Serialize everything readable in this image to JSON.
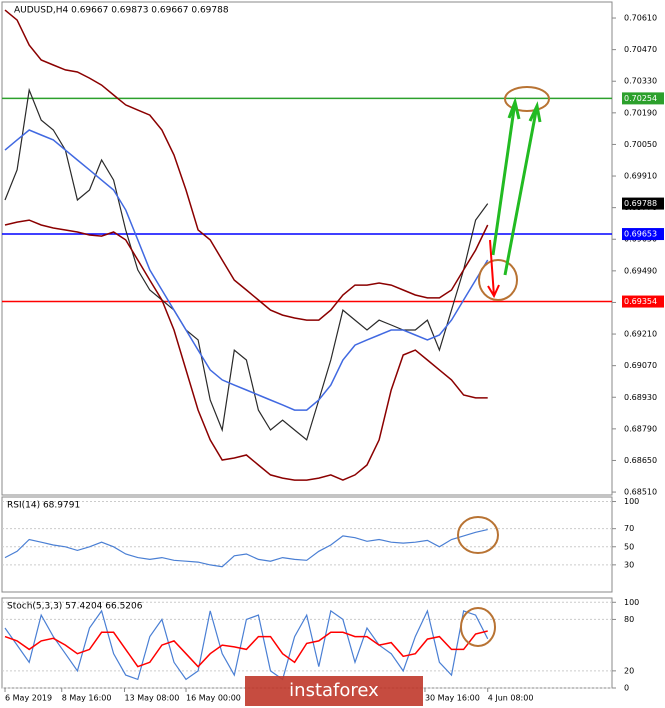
{
  "chart_data": [
    {
      "type": "line",
      "title": "AUDUSD,H4  0.69667 0.69873 0.69667 0.69788",
      "x": [
        0,
        1,
        2,
        3,
        4,
        5,
        6,
        7,
        8,
        9,
        10,
        11,
        12,
        13,
        14,
        15,
        16,
        17,
        18,
        19,
        20,
        21,
        22,
        23,
        24,
        25,
        26,
        27,
        28,
        29,
        30,
        31,
        32,
        33,
        34,
        35,
        36,
        37,
        38,
        39,
        40
      ],
      "xlim": [
        -0.25,
        50.3
      ],
      "ylim": [
        0.68497,
        0.70681
      ],
      "yticks": [
        {
          "value": 0.7061,
          "label": "0.70610"
        },
        {
          "value": 0.7047,
          "label": "0.70470"
        },
        {
          "value": 0.7033,
          "label": "0.70330"
        },
        {
          "value": 0.7019,
          "label": "0.70190"
        },
        {
          "value": 0.7005,
          "label": "0.70050"
        },
        {
          "value": 0.6991,
          "label": "0.69910"
        },
        {
          "value": 0.6977,
          "label": "0.69770"
        },
        {
          "value": 0.6963,
          "label": "0.69630"
        },
        {
          "value": 0.6949,
          "label": "0.69490"
        },
        {
          "value": 0.6935,
          "label": "0.69350"
        },
        {
          "value": 0.6921,
          "label": "0.69210"
        },
        {
          "value": 0.6907,
          "label": "0.69070"
        },
        {
          "value": 0.6893,
          "label": "0.68930"
        },
        {
          "value": 0.6879,
          "label": "0.68790"
        },
        {
          "value": 0.6865,
          "label": "0.68650"
        },
        {
          "value": 0.6851,
          "label": "0.68510"
        }
      ],
      "series": [
        {
          "name": "Close",
          "color": "#2a2a2a",
          "values": [
            0.69804,
            0.69937,
            0.70291,
            0.70158,
            0.70114,
            0.70025,
            0.69804,
            0.69848,
            0.69981,
            0.69892,
            0.69671,
            0.69494,
            0.69405,
            0.69361,
            0.69316,
            0.69228,
            0.69184,
            0.68918,
            0.68785,
            0.69139,
            0.69095,
            0.68873,
            0.68785,
            0.68829,
            0.68785,
            0.68741,
            0.68918,
            0.69095,
            0.69316,
            0.69272,
            0.69228,
            0.69272,
            0.6925,
            0.69228,
            0.69228,
            0.69272,
            0.69139,
            0.69316,
            0.69494,
            0.69715,
            0.69788
          ]
        },
        {
          "name": "Upper band",
          "color": "#8b0000",
          "values": [
            0.70645,
            0.70601,
            0.7049,
            0.70424,
            0.70402,
            0.7038,
            0.70371,
            0.70344,
            0.70313,
            0.70269,
            0.70225,
            0.70202,
            0.7018,
            0.70114,
            0.70003,
            0.69848,
            0.69671,
            0.69627,
            0.69538,
            0.69449,
            0.69405,
            0.69361,
            0.69316,
            0.69294,
            0.69281,
            0.69272,
            0.69272,
            0.69316,
            0.69383,
            0.69427,
            0.69427,
            0.69436,
            0.69427,
            0.69405,
            0.69383,
            0.6937,
            0.6937,
            0.69405,
            0.69494,
            0.69582,
            0.69693
          ]
        },
        {
          "name": "Lower band",
          "color": "#8b0000",
          "values": [
            0.69693,
            0.69706,
            0.69715,
            0.69693,
            0.6968,
            0.69671,
            0.69662,
            0.69649,
            0.69644,
            0.69662,
            0.69627,
            0.69538,
            0.69449,
            0.69361,
            0.69228,
            0.69051,
            0.68873,
            0.68741,
            0.68652,
            0.68661,
            0.68674,
            0.6863,
            0.68586,
            0.68572,
            0.68563,
            0.68563,
            0.68572,
            0.68586,
            0.68563,
            0.68586,
            0.6863,
            0.68741,
            0.68962,
            0.69117,
            0.69139,
            0.69095,
            0.69051,
            0.69007,
            0.6894,
            0.68927,
            0.68927
          ]
        },
        {
          "name": "MA",
          "color": "#4169e1",
          "values": [
            0.70025,
            0.7007,
            0.70114,
            0.70092,
            0.7007,
            0.70025,
            0.69981,
            0.69937,
            0.69892,
            0.69848,
            0.6976,
            0.69627,
            0.69494,
            0.69405,
            0.69316,
            0.69228,
            0.69139,
            0.69051,
            0.69007,
            0.68984,
            0.68962,
            0.6894,
            0.68918,
            0.68896,
            0.68873,
            0.68873,
            0.68918,
            0.68984,
            0.69095,
            0.69161,
            0.69184,
            0.69206,
            0.69228,
            0.69228,
            0.69206,
            0.69184,
            0.69206,
            0.69272,
            0.69361,
            0.69449,
            0.69538
          ]
        }
      ],
      "levels": [
        {
          "value": 0.70254,
          "color": "#2ca02c"
        },
        {
          "value": 0.69653,
          "color": "#0000ff"
        },
        {
          "value": 0.69354,
          "color": "#ff0000"
        }
      ],
      "current_price": 0.69788
    },
    {
      "type": "line",
      "title": "RSI(14) 68.9791",
      "x": [
        0,
        1,
        2,
        3,
        4,
        5,
        6,
        7,
        8,
        9,
        10,
        11,
        12,
        13,
        14,
        15,
        16,
        17,
        18,
        19,
        20,
        21,
        22,
        23,
        24,
        25,
        26,
        27,
        28,
        29,
        30,
        31,
        32,
        33,
        34,
        35,
        36,
        37,
        38,
        39,
        40
      ],
      "xlim": [
        -0.25,
        50.3
      ],
      "ylim": [
        0,
        105
      ],
      "yticks": [
        100,
        70,
        50,
        30
      ],
      "series": [
        {
          "name": "RSI",
          "color": "#4a7fd4",
          "values": [
            38,
            45,
            58,
            55,
            52,
            50,
            46,
            50,
            55,
            50,
            42,
            38,
            36,
            38,
            35,
            34,
            33,
            30,
            28,
            40,
            42,
            36,
            34,
            38,
            36,
            35,
            45,
            52,
            62,
            60,
            56,
            58,
            55,
            54,
            55,
            57,
            50,
            58,
            62,
            66,
            68.98
          ]
        }
      ]
    },
    {
      "type": "line",
      "title": "Stoch(5,3,3) 57.4204 66.5206",
      "x": [
        0,
        1,
        2,
        3,
        4,
        5,
        6,
        7,
        8,
        9,
        10,
        11,
        12,
        13,
        14,
        15,
        16,
        17,
        18,
        19,
        20,
        21,
        22,
        23,
        24,
        25,
        26,
        27,
        28,
        29,
        30,
        31,
        32,
        33,
        34,
        35,
        36,
        37,
        38,
        39,
        40
      ],
      "xlim": [
        -0.25,
        50.3
      ],
      "ylim": [
        0,
        105
      ],
      "yticks": [
        100,
        80,
        20,
        0
      ],
      "xticks": [
        {
          "value": 0,
          "label": "6 May 2019"
        },
        {
          "value": 4.7,
          "label": "8 May 16:00"
        },
        {
          "value": 9.9,
          "label": "13 May 08:00"
        },
        {
          "value": 15,
          "label": "16 May 00:00"
        },
        {
          "value": 34.8,
          "label": "30 May 16:00"
        },
        {
          "value": 40,
          "label": "4 Jun 08:00"
        }
      ],
      "series": [
        {
          "name": "%K",
          "color": "#4a7fd4",
          "values": [
            70,
            50,
            30,
            85,
            60,
            40,
            20,
            70,
            90,
            40,
            15,
            10,
            60,
            80,
            30,
            10,
            20,
            90,
            40,
            15,
            80,
            85,
            20,
            10,
            60,
            85,
            25,
            90,
            80,
            30,
            70,
            50,
            40,
            20,
            60,
            90,
            30,
            15,
            90,
            85,
            57.42
          ]
        },
        {
          "name": "%D",
          "color": "#ff0000",
          "values": [
            60,
            55,
            45,
            55,
            58,
            50,
            40,
            45,
            65,
            65,
            45,
            25,
            30,
            50,
            55,
            40,
            25,
            40,
            50,
            48,
            45,
            60,
            60,
            40,
            30,
            52,
            55,
            65,
            65,
            60,
            60,
            50,
            53,
            37,
            40,
            57,
            60,
            45,
            45,
            63,
            66.52
          ]
        }
      ]
    }
  ],
  "watermark": "instaforex"
}
